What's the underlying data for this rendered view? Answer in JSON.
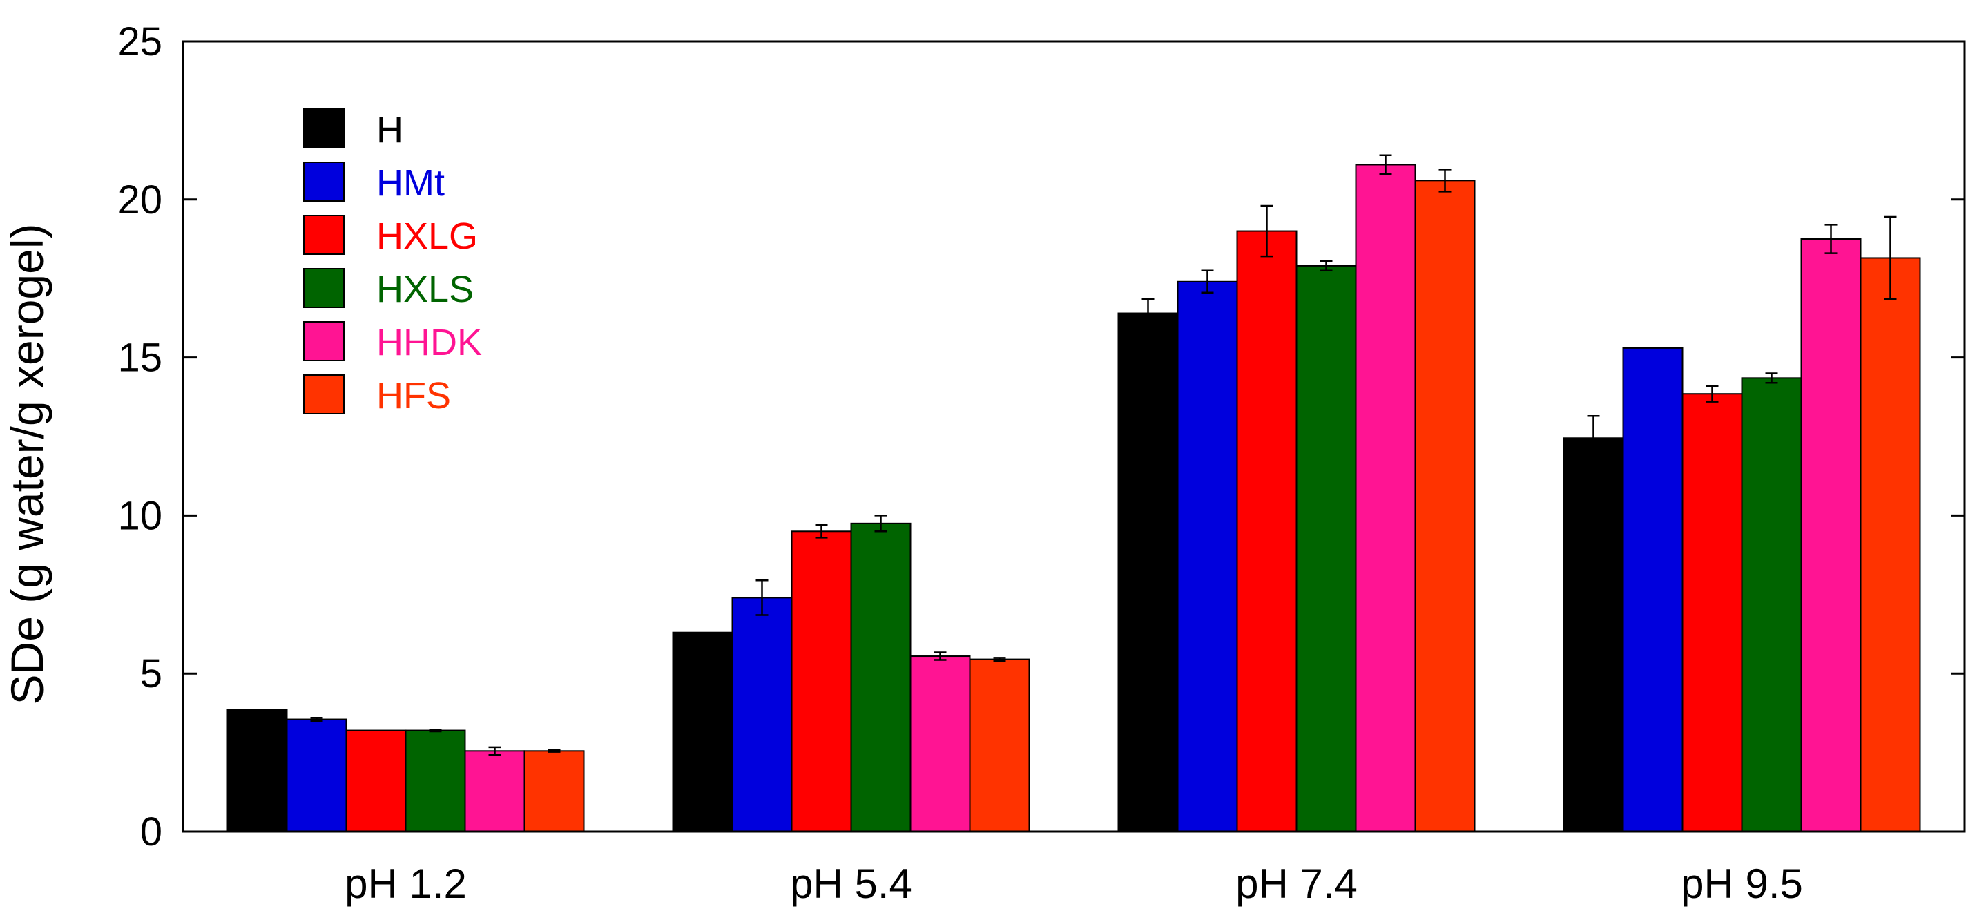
{
  "chart_data": {
    "type": "bar",
    "title": "",
    "xlabel": "",
    "ylabel": "SDe (g water/g xerogel)",
    "ylim": [
      0,
      25
    ],
    "yticks": [
      0,
      5,
      10,
      15,
      20,
      25
    ],
    "grid": false,
    "legend_position": "top-left",
    "categories": [
      "pH 1.2",
      "pH 5.4",
      "pH 7.4",
      "pH 9.5"
    ],
    "series": [
      {
        "name": "H",
        "color": "#000000",
        "values": [
          3.85,
          6.3,
          16.4,
          12.45
        ],
        "errors": [
          0.0,
          0.0,
          0.45,
          0.7
        ]
      },
      {
        "name": "HMt",
        "color": "#0000dd",
        "values": [
          3.55,
          7.4,
          17.4,
          15.3
        ],
        "errors": [
          0.05,
          0.55,
          0.35,
          0.0
        ]
      },
      {
        "name": "HXLG",
        "color": "#ff0000",
        "values": [
          3.2,
          9.5,
          19.0,
          13.85
        ],
        "errors": [
          0.0,
          0.2,
          0.8,
          0.25
        ]
      },
      {
        "name": "HXLS",
        "color": "#006400",
        "values": [
          3.2,
          9.75,
          17.9,
          14.35
        ],
        "errors": [
          0.03,
          0.25,
          0.15,
          0.15
        ]
      },
      {
        "name": "HHDK",
        "color": "#ff1493",
        "values": [
          2.55,
          5.55,
          21.1,
          18.75
        ],
        "errors": [
          0.12,
          0.12,
          0.3,
          0.45
        ]
      },
      {
        "name": "HFS",
        "color": "#ff3300",
        "values": [
          2.55,
          5.45,
          20.6,
          18.15
        ],
        "errors": [
          0.03,
          0.05,
          0.35,
          1.3
        ]
      }
    ]
  }
}
